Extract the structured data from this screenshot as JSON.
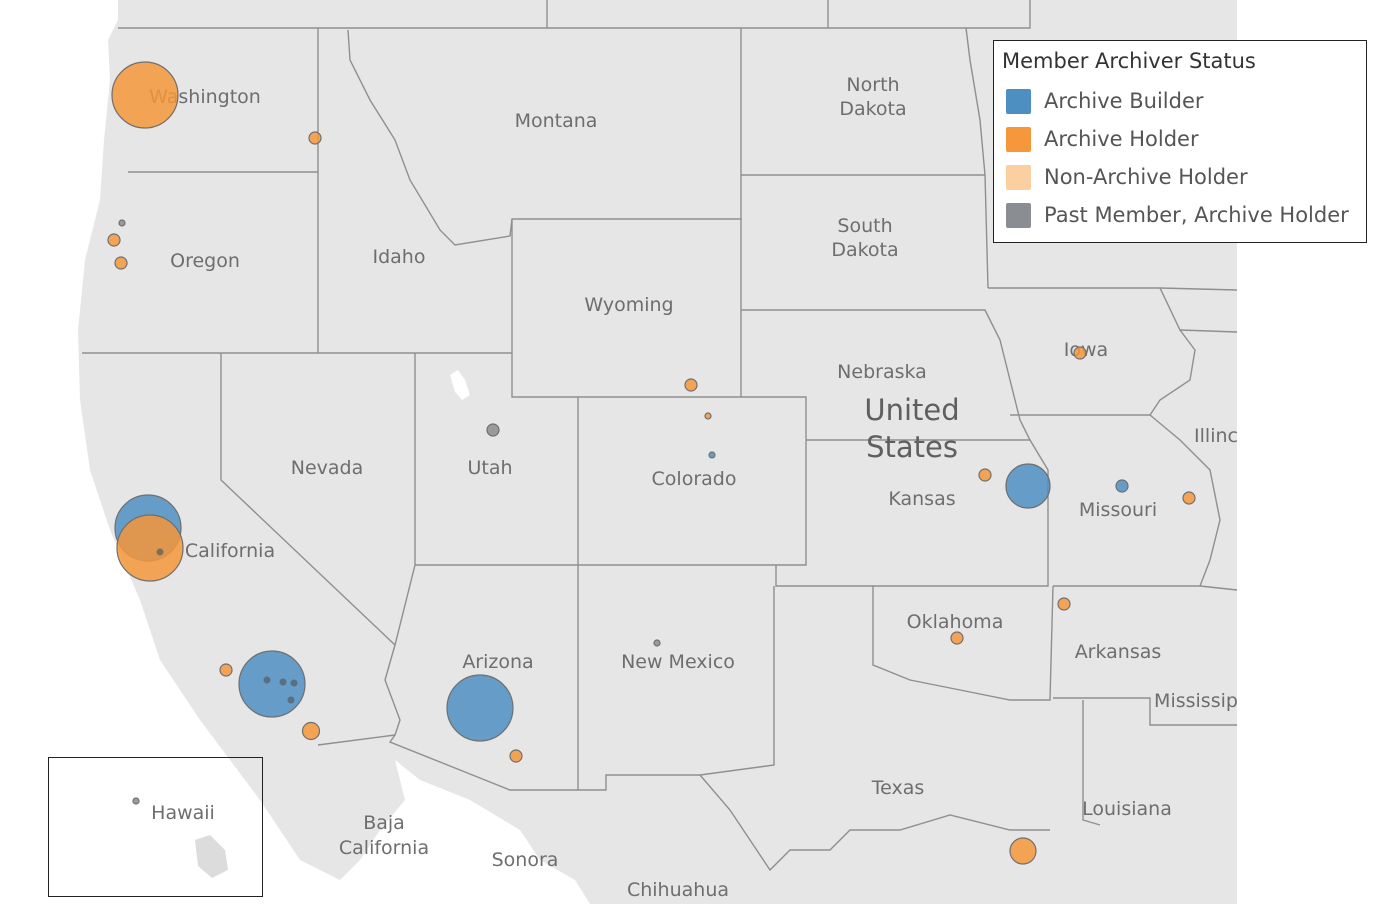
{
  "colors": {
    "land": "#e6e6e6",
    "land_dark": "#dedede",
    "water": "#ffffff",
    "border": "#8f8f8f",
    "label": "#6e6e6e"
  },
  "legend": {
    "title": "Member Archiver Status",
    "items": [
      {
        "label": "Archive Builder",
        "color": "#4e8fc2"
      },
      {
        "label": "Archive Holder",
        "color": "#f5973a"
      },
      {
        "label": "Non-Archive Holder",
        "color": "#fbcfa0"
      },
      {
        "label": "Past Member, Archive Holder",
        "color": "#8a8d91"
      }
    ]
  },
  "country_label": [
    "United",
    "States"
  ],
  "region_labels": [
    {
      "text": "Washington"
    },
    {
      "text": "Montana"
    },
    {
      "text": "North"
    },
    {
      "text": "Dakota"
    },
    {
      "text": "South"
    },
    {
      "text": "Dakota"
    },
    {
      "text": "Oregon"
    },
    {
      "text": "Idaho"
    },
    {
      "text": "Wyoming"
    },
    {
      "text": "Nebraska"
    },
    {
      "text": "Iowa"
    },
    {
      "text": "Illinc"
    },
    {
      "text": "Nevada"
    },
    {
      "text": "Utah"
    },
    {
      "text": "Colorado"
    },
    {
      "text": "Kansas"
    },
    {
      "text": "Missouri"
    },
    {
      "text": "California"
    },
    {
      "text": "Arizona"
    },
    {
      "text": "New Mexico"
    },
    {
      "text": "Oklahoma"
    },
    {
      "text": "Arkansas"
    },
    {
      "text": "Mississip"
    },
    {
      "text": "Texas"
    },
    {
      "text": "Louisiana"
    },
    {
      "text": "Baja"
    },
    {
      "text": "California"
    },
    {
      "text": "Sonora"
    },
    {
      "text": "Chihuahua"
    },
    {
      "text": "Hawaii"
    }
  ],
  "markers": [
    {
      "place": "Seattle, WA",
      "status": "Archive Holder",
      "size": 5
    },
    {
      "place": "Spokane, WA",
      "status": "Archive Holder",
      "size": 1
    },
    {
      "place": "Portland, OR",
      "status": "Past Member, Archive Holder",
      "size": 0
    },
    {
      "place": "Salem, OR",
      "status": "Archive Holder",
      "size": 1
    },
    {
      "place": "Eugene, OR",
      "status": "Archive Holder",
      "size": 1
    },
    {
      "place": "San Francisco Bay, CA",
      "status": "Archive Builder",
      "size": 5
    },
    {
      "place": "San Francisco Bay, CA",
      "status": "Archive Holder",
      "size": 5
    },
    {
      "place": "Los Angeles, CA",
      "status": "Archive Builder",
      "size": 5
    },
    {
      "place": "Santa Barbara, CA",
      "status": "Archive Holder",
      "size": 1
    },
    {
      "place": "San Diego, CA",
      "status": "Archive Holder",
      "size": 2
    },
    {
      "place": "Phoenix, AZ",
      "status": "Archive Builder",
      "size": 5
    },
    {
      "place": "Tucson, AZ",
      "status": "Archive Holder",
      "size": 1
    },
    {
      "place": "Salt Lake City, UT",
      "status": "Past Member, Archive Holder",
      "size": 1
    },
    {
      "place": "Fort Collins, CO",
      "status": "Archive Holder",
      "size": 1
    },
    {
      "place": "Boulder, CO",
      "status": "Archive Holder",
      "size": 0
    },
    {
      "place": "Denver, CO",
      "status": "Archive Builder",
      "size": 0
    },
    {
      "place": "Albuquerque, NM",
      "status": "Past Member, Archive Holder",
      "size": 0
    },
    {
      "place": "Lawrence, KS",
      "status": "Archive Holder",
      "size": 1
    },
    {
      "place": "Kansas City, MO",
      "status": "Archive Builder",
      "size": 4
    },
    {
      "place": "Columbia, MO",
      "status": "Archive Builder",
      "size": 1
    },
    {
      "place": "St. Louis, MO",
      "status": "Archive Holder",
      "size": 1
    },
    {
      "place": "Iowa City, IA",
      "status": "Archive Holder",
      "size": 1
    },
    {
      "place": "Norman, OK",
      "status": "Archive Holder",
      "size": 1
    },
    {
      "place": "Fayetteville, AR",
      "status": "Archive Holder",
      "size": 1
    },
    {
      "place": "Houston, TX",
      "status": "Archive Holder",
      "size": 3
    },
    {
      "place": "Honolulu, HI",
      "status": "Past Member, Archive Holder",
      "size": 0
    }
  ]
}
